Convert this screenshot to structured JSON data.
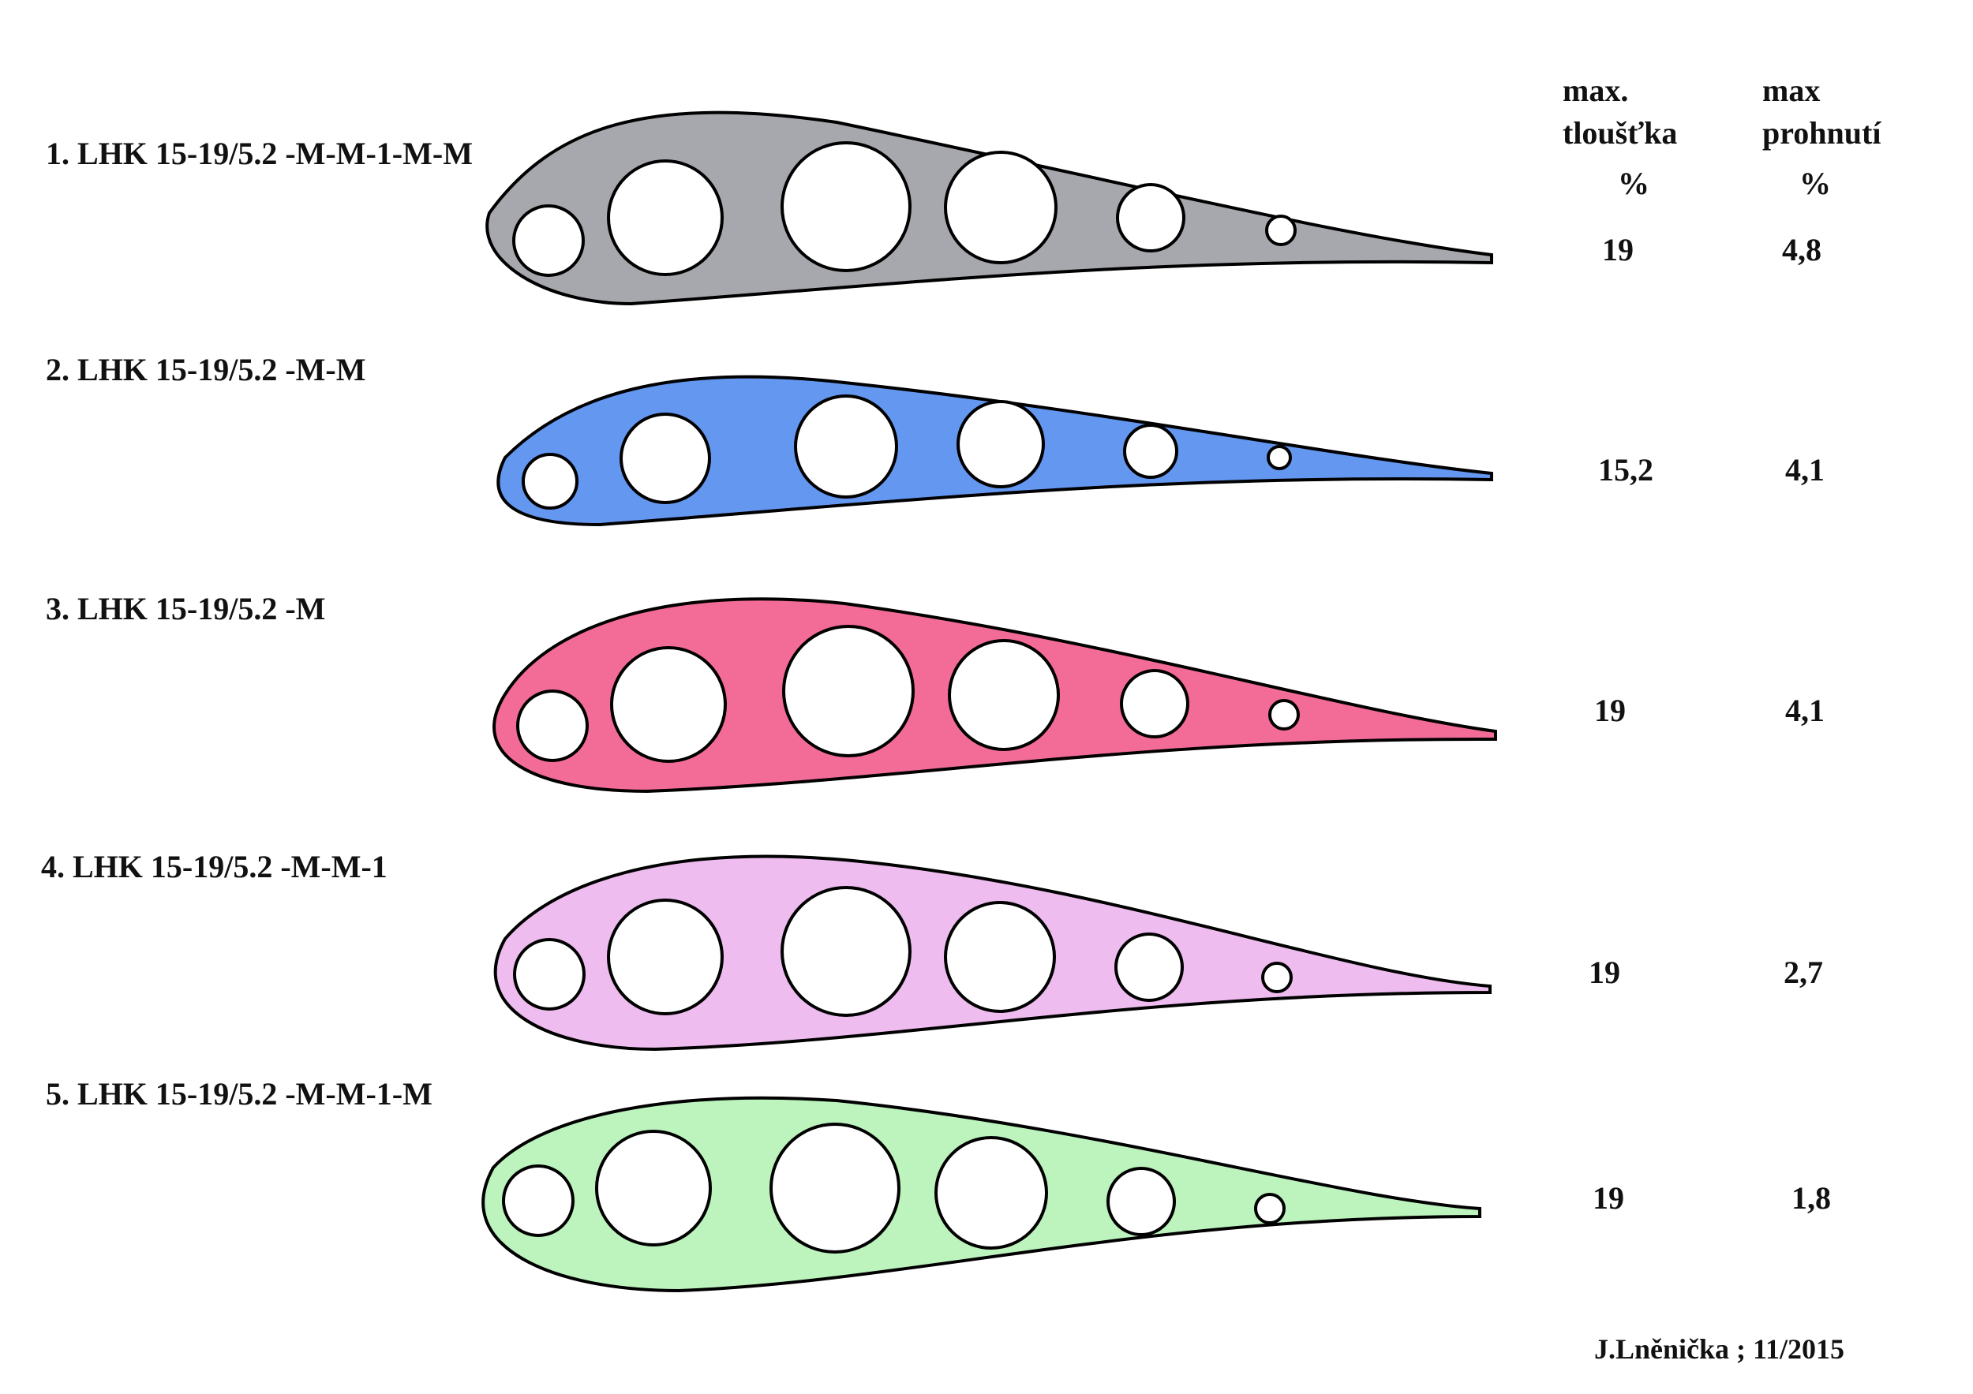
{
  "header": {
    "thickness_line1": "max.",
    "thickness_line2": "tloušťka",
    "thickness_unit": "%",
    "camber_line1": "max",
    "camber_line2": "prohnutí",
    "camber_unit": "%"
  },
  "profiles": [
    {
      "label": "1.  LHK 15-19/5.2 -M-M-1-M-M",
      "thickness": "19",
      "camber": "4,8",
      "color": "#a7a8ae"
    },
    {
      "label": "2.  LHK 15-19/5.2 -M-M",
      "thickness": "15,2",
      "camber": "4,1",
      "color": "#6397f0"
    },
    {
      "label": "3.  LHK 15-19/5.2 -M",
      "thickness": "19",
      "camber": "4,1",
      "color": "#f36c97"
    },
    {
      "label": "4.  LHK 15-19/5.2 -M-M-1",
      "thickness": "19",
      "camber": "2,7",
      "color": "#eebcef"
    },
    {
      "label": "5.  LHK 15-19/5.2 -M-M-1-M",
      "thickness": "19",
      "camber": "1,8",
      "color": "#bdf4be"
    }
  ],
  "footer": {
    "author": "J.Lněnička ; 11/2015"
  }
}
